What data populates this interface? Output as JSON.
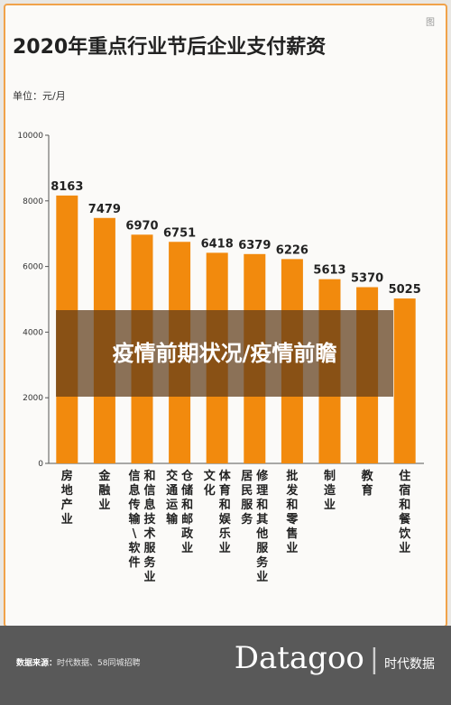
{
  "header": {
    "title": "2020年重点行业节后企业支付薪资",
    "unit": "单位：元/月",
    "corner_text": "图"
  },
  "chart_data": {
    "type": "bar",
    "ylim": [
      0,
      10000
    ],
    "yticks": [
      0,
      2000,
      4000,
      6000,
      8000,
      10000
    ],
    "categories": [
      "房地产业",
      "金融业",
      "信息传输\\软件和信息技术服务业",
      "交通运输仓储和邮政业",
      "文化体育和娱乐业",
      "居民服务修理和其他服务业",
      "批发和零售业",
      "制造业",
      "教育",
      "住宿和餐饮业"
    ],
    "category_columns": [
      [
        "房地产业"
      ],
      [
        "金融业"
      ],
      [
        "信息传输\\软件",
        "和信息技术服务业"
      ],
      [
        "交通运输",
        "仓储和邮政业"
      ],
      [
        "文化",
        "体育和娱乐业"
      ],
      [
        "居民服务",
        "修理和其他服务业"
      ],
      [
        "批发和零售业"
      ],
      [
        "制造业"
      ],
      [
        "教育"
      ],
      [
        "住宿和餐饮业"
      ]
    ],
    "values": [
      8163,
      7479,
      6970,
      6751,
      6418,
      6379,
      6226,
      5613,
      5370,
      5025
    ],
    "bar_color": "#f28a0d"
  },
  "overlay": {
    "text": "疫情前期状况/疫情前瞻"
  },
  "footer": {
    "source_label": "数据来源：",
    "source_text": "时代数据、58同城招聘",
    "brand": "Datagoo",
    "brand_sub": "时代数据"
  }
}
